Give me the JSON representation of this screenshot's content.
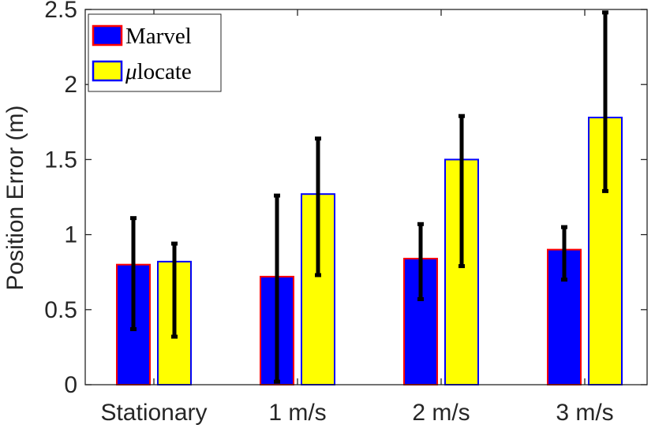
{
  "chart_data": {
    "type": "bar",
    "title": "",
    "xlabel": "",
    "ylabel": "Position Error (m)",
    "categories": [
      "Stationary",
      "1 m/s",
      "2 m/s",
      "3 m/s"
    ],
    "ylim": [
      0,
      2.5
    ],
    "yticks": [
      0,
      0.5,
      1,
      1.5,
      2,
      2.5
    ],
    "ytick_labels": [
      "0",
      "0.5",
      "1",
      "1.5",
      "2",
      "2.5"
    ],
    "grid": false,
    "legend": {
      "position": "top-left"
    },
    "series": [
      {
        "name": "Marvel",
        "legend_prefix": "",
        "legend_rest": "Marvel",
        "fill": "#0000ff",
        "edge": "#ff0000",
        "values": [
          0.8,
          0.72,
          0.84,
          0.9
        ],
        "err_low": [
          0.37,
          0.02,
          0.57,
          0.7
        ],
        "err_high": [
          1.11,
          1.26,
          1.07,
          1.05
        ]
      },
      {
        "name": "μlocate",
        "legend_prefix": "μ",
        "legend_rest": "locate",
        "fill": "#ffff00",
        "edge": "#0000ff",
        "values": [
          0.82,
          1.27,
          1.5,
          1.78
        ],
        "err_low": [
          0.32,
          0.73,
          0.79,
          1.29
        ],
        "err_high": [
          0.94,
          1.64,
          1.79,
          2.48
        ]
      }
    ]
  }
}
